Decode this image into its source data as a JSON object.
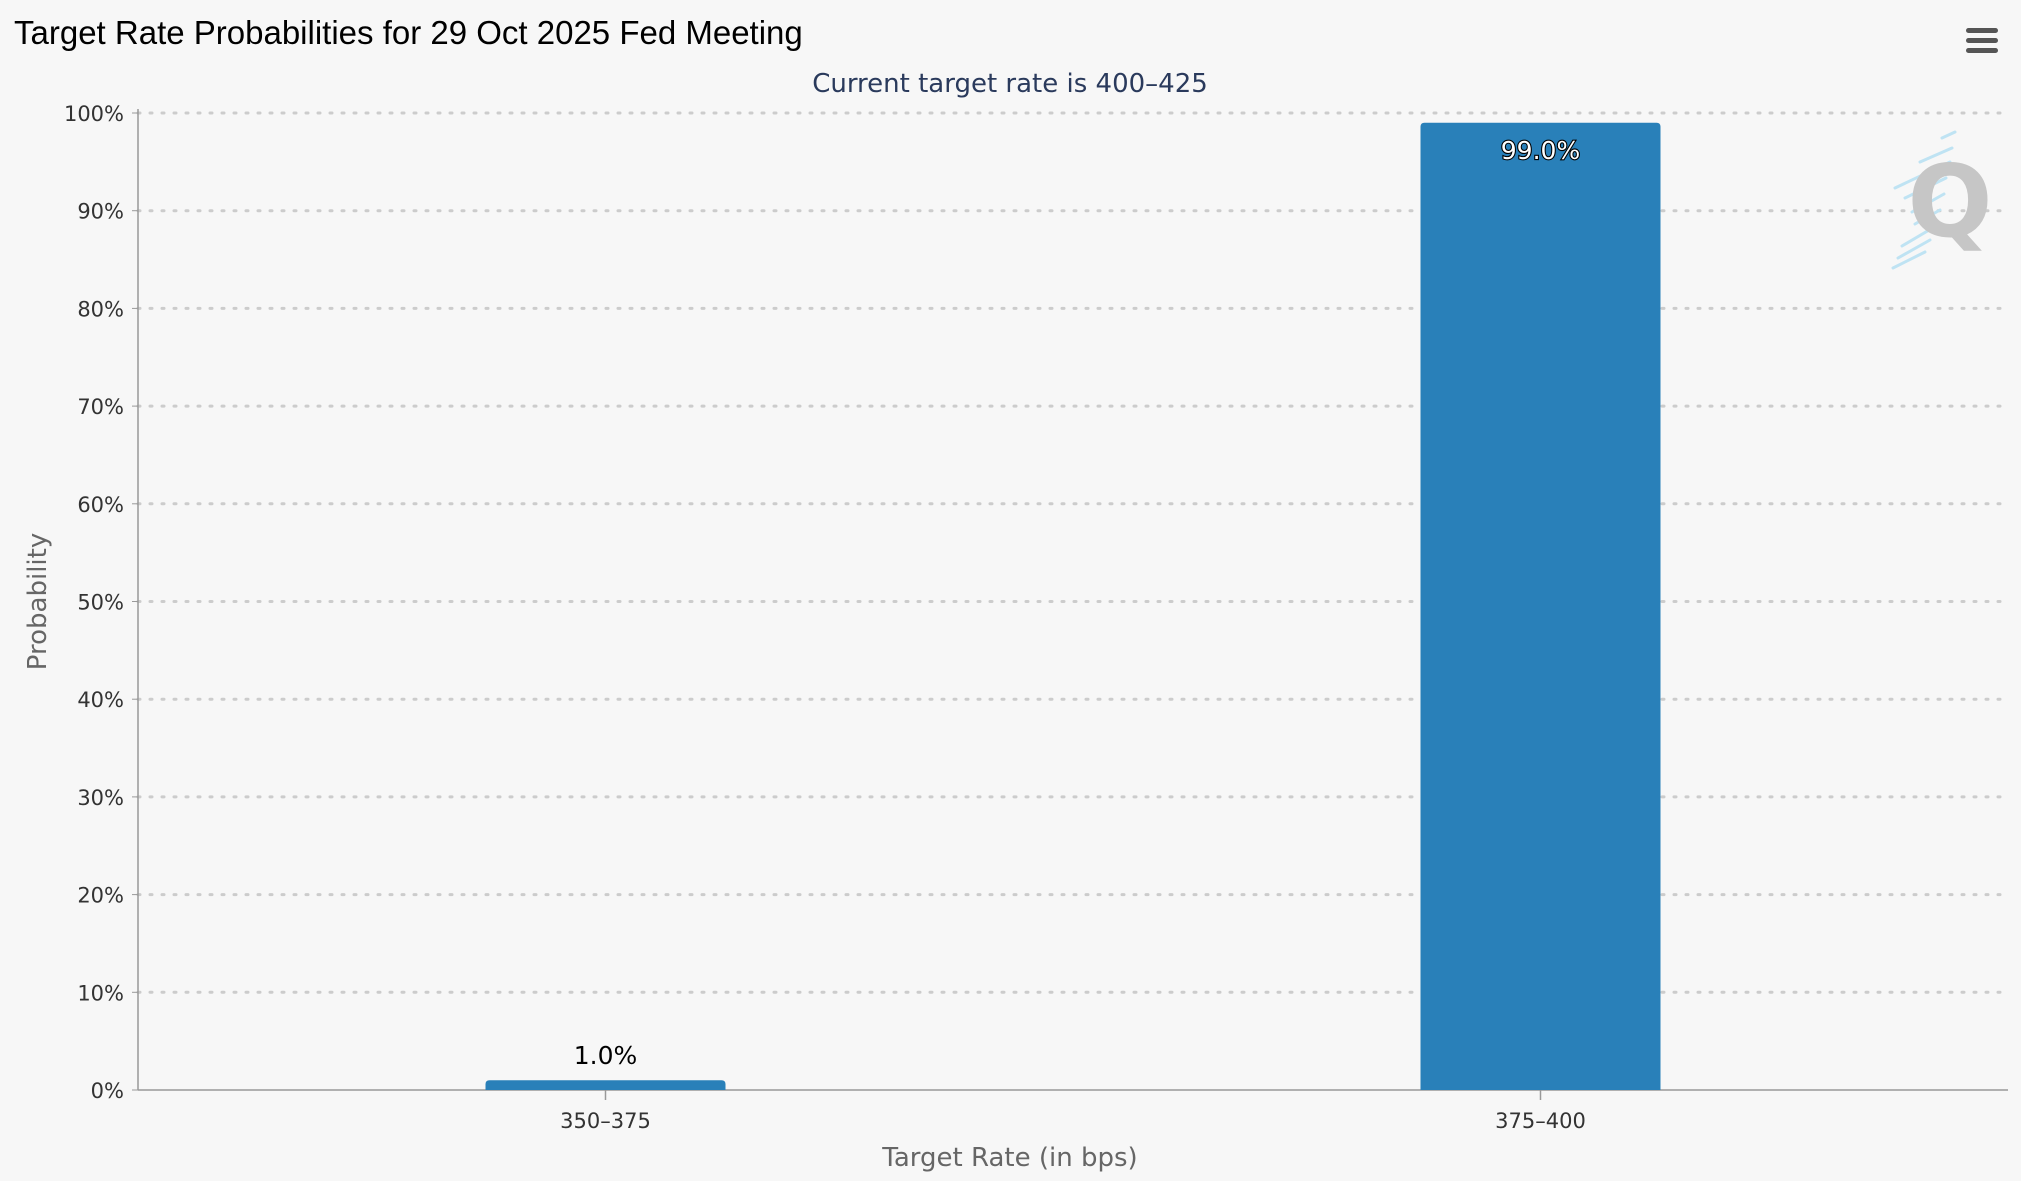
{
  "page": {
    "title": "Target Rate Probabilities for 29 Oct 2025 Fed Meeting",
    "menu_icon": "hamburger-menu-icon",
    "watermark_icon": "quikstrike-q-logo-icon"
  },
  "colors": {
    "background": "#f7f7f7",
    "bar": "#2980b9",
    "grid": "#cccccc",
    "subtitle": "#2a3a5c",
    "axis_title": "#666666"
  },
  "chart_data": {
    "type": "bar",
    "title": "Target Rate Probabilities for 29 Oct 2025 Fed Meeting",
    "subtitle": "Current target rate is 400–425",
    "xlabel": "Target Rate (in bps)",
    "ylabel": "Probability",
    "categories": [
      "350–375",
      "375–400"
    ],
    "values": [
      1.0,
      99.0
    ],
    "data_labels": [
      "1.0%",
      "99.0%"
    ],
    "ylim": [
      0,
      100
    ],
    "yticks": [
      0,
      10,
      20,
      30,
      40,
      50,
      60,
      70,
      80,
      90,
      100
    ],
    "ytick_labels": [
      "0%",
      "10%",
      "20%",
      "30%",
      "40%",
      "50%",
      "60%",
      "70%",
      "80%",
      "90%",
      "100%"
    ],
    "grid": true,
    "grid_style": "dotted",
    "legend": "none"
  }
}
